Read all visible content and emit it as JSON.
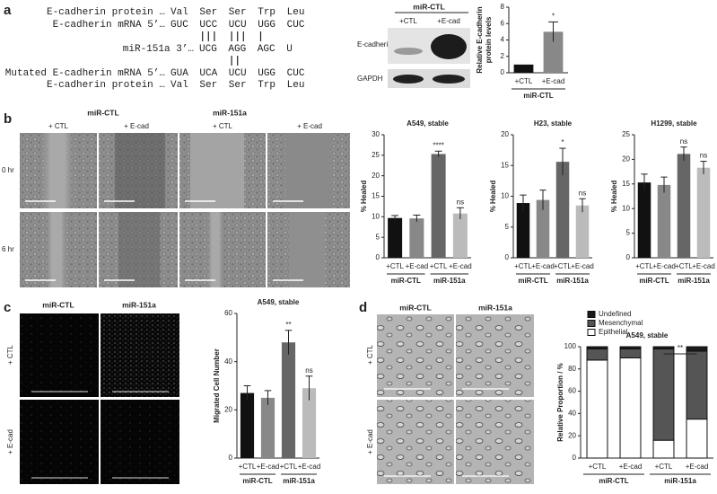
{
  "panel_labels": [
    "a",
    "b",
    "c",
    "d"
  ],
  "sequence": {
    "lines": [
      {
        "prefix": "E-cadherin protein …",
        "codons": "Val Ser Ser Trp Leu"
      },
      {
        "prefix": "E-cadherin mRNA 5’…",
        "codons": "GUC UCC UCU UGG CUC"
      },
      {
        "prefix": "miR-151a 3’…",
        "codons": "UCG AGG AGC U"
      },
      {
        "prefix": "Mutated E-cadherin mRNA 5’…",
        "codons": "GUA UCA UCU UGG CUC"
      },
      {
        "prefix": "E-cadherin protein …",
        "codons": "Val Ser Ser Trp Leu"
      }
    ]
  },
  "blot": {
    "header": "miR-CTL",
    "lanes": [
      "+CTL",
      "+E-cad"
    ],
    "rows": [
      "E-cadherin",
      "GAPDH"
    ]
  },
  "wound_images": {
    "groups": [
      "miR-CTL",
      "miR-151a"
    ],
    "conditions": [
      "+ CTL",
      "+ E-cad",
      "+ CTL",
      "+ E-cad"
    ],
    "times": [
      "0 hr",
      "6 hr"
    ]
  },
  "migration_images": {
    "groups": [
      "miR-CTL",
      "miR-151a"
    ],
    "rows": [
      "+ CTL",
      "+ E-cad"
    ]
  },
  "morphology_images": {
    "groups": [
      "miR-CTL",
      "miR-151a"
    ],
    "rows": [
      "+ CTL",
      "+ E-cad"
    ]
  },
  "chart_data": [
    {
      "type": "bar",
      "ylabel": [
        "Relative E-cadherin",
        "protein levels"
      ],
      "categories": [
        "+CTL",
        "+E-cad"
      ],
      "groups": [
        "miR-CTL"
      ],
      "values": [
        1,
        5
      ],
      "errors": [
        null,
        1.2
      ],
      "colors": [
        "#111111",
        "#888888"
      ],
      "annotations": [
        null,
        "*"
      ],
      "ylim": [
        0,
        8
      ],
      "yticks": [
        0,
        2,
        4,
        6,
        8
      ]
    },
    {
      "type": "bar",
      "title": "A549, stable",
      "ylabel": [
        "% Healed"
      ],
      "categories": [
        "+CTL",
        "+E-cad",
        "+CTL",
        "+E-cad"
      ],
      "groups": [
        "miR-CTL",
        "miR-151a"
      ],
      "values": [
        9.7,
        9.6,
        25.3,
        10.8
      ],
      "errors": [
        0.6,
        0.8,
        0.7,
        1.4
      ],
      "colors": [
        "#111111",
        "#888888",
        "#666666",
        "#bbbbbb"
      ],
      "annotations": [
        null,
        null,
        "****",
        "ns"
      ],
      "ylim": [
        0,
        30
      ],
      "yticks": [
        0,
        5,
        10,
        15,
        20,
        25,
        30
      ]
    },
    {
      "type": "bar",
      "title": "H23, stable",
      "ylabel": [
        "% Healed"
      ],
      "categories": [
        "+CTL",
        "+E-cad",
        "+CTL",
        "+E-cad"
      ],
      "groups": [
        "miR-CTL",
        "miR-151a"
      ],
      "values": [
        8.9,
        9.4,
        15.6,
        8.5
      ],
      "errors": [
        1.3,
        1.6,
        2.2,
        1.1
      ],
      "colors": [
        "#111111",
        "#888888",
        "#666666",
        "#bbbbbb"
      ],
      "annotations": [
        null,
        null,
        "*",
        "ns"
      ],
      "ylim": [
        0,
        20
      ],
      "yticks": [
        0,
        5,
        10,
        15,
        20
      ]
    },
    {
      "type": "bar",
      "title": "H1299, stable",
      "ylabel": [
        "% Healed"
      ],
      "categories": [
        "+CTL",
        "+E-cad",
        "+CTL",
        "+E-cad"
      ],
      "groups": [
        "miR-CTL",
        "miR-151a"
      ],
      "values": [
        15.3,
        14.8,
        21.1,
        18.3
      ],
      "errors": [
        1.7,
        1.6,
        1.4,
        1.3
      ],
      "colors": [
        "#111111",
        "#888888",
        "#666666",
        "#bbbbbb"
      ],
      "annotations": [
        null,
        null,
        "ns",
        "ns"
      ],
      "ylim": [
        0,
        25
      ],
      "yticks": [
        0,
        5,
        10,
        15,
        20,
        25
      ]
    },
    {
      "type": "bar",
      "title": "A549, stable",
      "ylabel": [
        "Migrated Cell Number"
      ],
      "categories": [
        "+CTL",
        "+E-cad",
        "+CTL",
        "+E-cad"
      ],
      "groups": [
        "miR-CTL",
        "miR-151a"
      ],
      "values": [
        27,
        25,
        48,
        29
      ],
      "errors": [
        3,
        3,
        5,
        5
      ],
      "colors": [
        "#111111",
        "#888888",
        "#666666",
        "#bbbbbb"
      ],
      "annotations": [
        null,
        null,
        "**",
        "ns"
      ],
      "ylim": [
        0,
        60
      ],
      "yticks": [
        0,
        20,
        40,
        60
      ]
    },
    {
      "type": "stacked_bar",
      "title": "A549, stable",
      "ylabel": [
        "Relative Proportion / %"
      ],
      "categories": [
        "+CTL",
        "+E-cad",
        "+CTL",
        "+E-cad"
      ],
      "groups": [
        "miR-CTL",
        "miR-151a"
      ],
      "series": [
        {
          "name": "Epithelial",
          "color": "#ffffff",
          "values": [
            88,
            90,
            16,
            35
          ]
        },
        {
          "name": "Mesenchymal",
          "color": "#555555",
          "values": [
            10,
            8,
            82,
            61
          ]
        },
        {
          "name": "Undefined",
          "color": "#1a1a1a",
          "values": [
            2,
            2,
            2,
            4
          ]
        }
      ],
      "annotation": "**",
      "ylim": [
        0,
        100
      ],
      "yticks": [
        0,
        20,
        40,
        60,
        80,
        100
      ]
    }
  ]
}
